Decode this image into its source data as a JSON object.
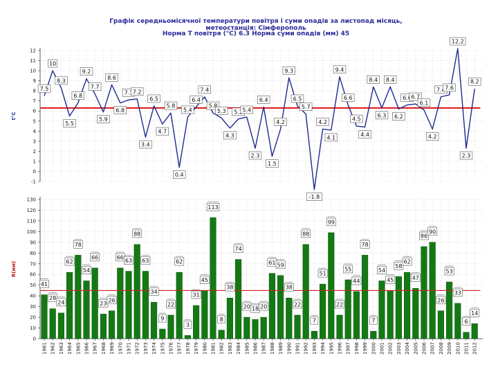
{
  "title": "Графік середньомісячної температури повітря і суми опадів за листопад місяць,    метеостанція: Сімферополь",
  "subtitle": "Норма Т повітря (°С)  6.3   Норма суми опадів (мм)  45",
  "colors": {
    "temp_line": "#1c2a8f",
    "temp_norm": "#e01515",
    "bars": "#137a13",
    "bar_stroke": "#0a4a0a",
    "precip_norm": "#d02020",
    "temp_axis_label": "#1c2a8f",
    "precip_axis_label": "#c01515"
  },
  "chart_data": [
    {
      "type": "line",
      "ylabel": "t°C",
      "ylim": [
        -1,
        12
      ],
      "yticks": [
        -1,
        0,
        1,
        2,
        3,
        4,
        5,
        6,
        7,
        8,
        9,
        10,
        11,
        12
      ],
      "grid": true,
      "norm": 6.3,
      "categories": [
        "1961",
        "1962",
        "1963",
        "1964",
        "1965",
        "1966",
        "1967",
        "1968",
        "1969",
        "1970",
        "1971",
        "1972",
        "1973",
        "1974",
        "1975",
        "1976",
        "1977",
        "1978",
        "1979",
        "1980",
        "1981",
        "1982",
        "1983",
        "1984",
        "1985",
        "1986",
        "1987",
        "1988",
        "1989",
        "1990",
        "1991",
        "1992",
        "1993",
        "1994",
        "1995",
        "1996",
        "1997",
        "1998",
        "1999",
        "2000",
        "2001",
        "2002",
        "2003",
        "2004",
        "2005",
        "2006",
        "2007",
        "2008",
        "2009",
        "2010",
        "2011",
        "2012"
      ],
      "values": [
        7.5,
        10.0,
        8.3,
        5.5,
        6.8,
        9.2,
        7.7,
        5.9,
        8.6,
        6.8,
        7.1,
        7.2,
        3.4,
        6.5,
        4.7,
        5.8,
        0.4,
        5.4,
        6.4,
        7.4,
        5.8,
        5.3,
        4.3,
        5.2,
        5.4,
        2.3,
        6.4,
        1.5,
        4.2,
        9.3,
        6.5,
        5.7,
        -1.8,
        4.2,
        4.1,
        9.4,
        6.6,
        4.5,
        4.4,
        8.4,
        6.3,
        8.4,
        6.2,
        6.6,
        6.7,
        6.1,
        4.2,
        7.4,
        7.6,
        12.2,
        2.3,
        8.2
      ],
      "labels": [
        "7.5",
        "10",
        "8.3",
        "5.5",
        "6.8",
        "9.2",
        "7.7",
        "5.9",
        "8.6",
        "6.8",
        "7.1",
        "7.2",
        "3.4",
        "6.5",
        "4.7",
        "5.8",
        "0.4",
        "5.4",
        "6.4",
        "7.4",
        "5.8",
        "5.3",
        "4.3",
        "5.2",
        "5.4",
        "2.3",
        "6.4",
        "1.5",
        "4.2",
        "9.3",
        "6.5",
        "5.7",
        "-1.8",
        "4.2",
        "4.1",
        "9.4",
        "6.6",
        "4.5",
        "4.4",
        "8.4",
        "6.3",
        "8.4",
        "6.2",
        "6.6",
        "6.7",
        "6.1",
        "4.2",
        "7.4",
        "7.6",
        "12.2",
        "2.3",
        "8.2"
      ]
    },
    {
      "type": "bar",
      "ylabel": "R(мм)",
      "ylim": [
        0,
        130
      ],
      "yticks": [
        0,
        10,
        20,
        30,
        40,
        50,
        60,
        70,
        80,
        90,
        100,
        110,
        120,
        130
      ],
      "grid": true,
      "norm": 45,
      "xticks": [
        "1961",
        "1962",
        "1963",
        "1964",
        "1965",
        "1966",
        "1967",
        "1968",
        "1969",
        "1970",
        "1971",
        "1972",
        "1973",
        "1974",
        "1975",
        "1976",
        "1977",
        "1978",
        "1979",
        "1980",
        "1981",
        "1982",
        "1983",
        "1984",
        "1985",
        "1986",
        "1987",
        "1988",
        "1989",
        "1990",
        "1991",
        "1992",
        "1993",
        "1994",
        "1995",
        "1996",
        "1997",
        "1998",
        "1999",
        "2000",
        "2001",
        "2002",
        "2003",
        "2004",
        "2005",
        "2006",
        "2007",
        "2008",
        "2009",
        "2010",
        "2011",
        "2012"
      ],
      "values": [
        41,
        28,
        24,
        62,
        78,
        54,
        66,
        23,
        26,
        66,
        63,
        88,
        63,
        34,
        9,
        22,
        62,
        3,
        31,
        45,
        113,
        8,
        38,
        74,
        20,
        18,
        20,
        61,
        59,
        38,
        22,
        88,
        7,
        51,
        99,
        22,
        55,
        44,
        78,
        7,
        54,
        45,
        58,
        62,
        47,
        86,
        90,
        26,
        53,
        33,
        6,
        14
      ],
      "labels": [
        "41",
        "28",
        "24",
        "62",
        "78",
        "54",
        "66",
        "23",
        "26",
        "66",
        "63",
        "88",
        "63",
        "34",
        "9",
        "22",
        "62",
        "3",
        "31",
        "45",
        "113",
        "8",
        "38",
        "74",
        "20",
        "18",
        "20",
        "61",
        "59",
        "38",
        "22",
        "88",
        "7",
        "51",
        "99",
        "22",
        "55",
        "44",
        "78",
        "7",
        "54",
        "45",
        "58",
        "62",
        "47",
        "86",
        "90",
        "26",
        "53",
        "33",
        "6",
        "14"
      ]
    }
  ]
}
